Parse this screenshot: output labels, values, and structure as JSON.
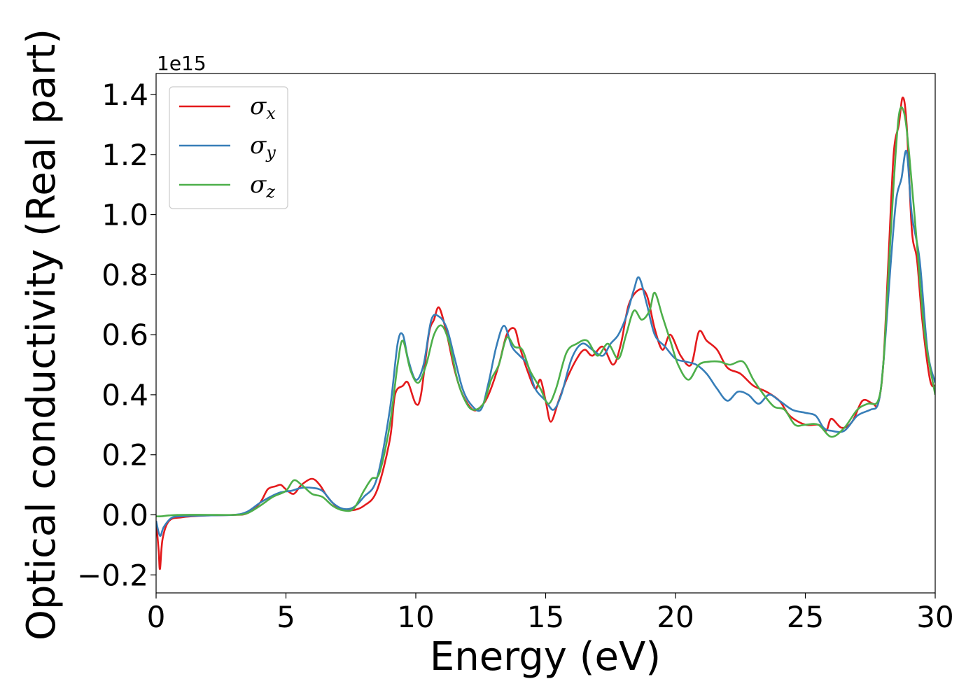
{
  "chart_data": {
    "type": "line",
    "xlabel": "Energy (eV)",
    "ylabel": "Optical conductivity (Real part)",
    "y_offset_text": "1e15",
    "xlim": [
      0,
      30
    ],
    "ylim": [
      -0.26,
      1.47
    ],
    "xticks": [
      0,
      5,
      10,
      15,
      20,
      25,
      30
    ],
    "xtick_labels": [
      "0",
      "5",
      "10",
      "15",
      "20",
      "25",
      "30"
    ],
    "yticks": [
      -0.2,
      0.0,
      0.2,
      0.4,
      0.6,
      0.8,
      1.0,
      1.2,
      1.4
    ],
    "ytick_labels": [
      "−0.2",
      "0.0",
      "0.2",
      "0.4",
      "0.6",
      "0.8",
      "1.0",
      "1.2",
      "1.4"
    ],
    "grid": false,
    "legend_position": "top-left",
    "series": [
      {
        "name": "σ",
        "subscript": "x",
        "color": "#e41a1c",
        "points": [
          [
            0,
            -0.02
          ],
          [
            0.1,
            -0.12
          ],
          [
            0.15,
            -0.18
          ],
          [
            0.25,
            -0.08
          ],
          [
            0.5,
            -0.02
          ],
          [
            1,
            -0.008
          ],
          [
            2,
            -0.002
          ],
          [
            3,
            0
          ],
          [
            3.5,
            0.005
          ],
          [
            4,
            0.04
          ],
          [
            4.3,
            0.085
          ],
          [
            4.6,
            0.095
          ],
          [
            4.8,
            0.1
          ],
          [
            5.0,
            0.085
          ],
          [
            5.3,
            0.07
          ],
          [
            5.6,
            0.1
          ],
          [
            6.0,
            0.12
          ],
          [
            6.3,
            0.1
          ],
          [
            6.6,
            0.06
          ],
          [
            7.0,
            0.025
          ],
          [
            7.5,
            0.015
          ],
          [
            8.0,
            0.03
          ],
          [
            8.5,
            0.08
          ],
          [
            9.0,
            0.25
          ],
          [
            9.2,
            0.4
          ],
          [
            9.5,
            0.43
          ],
          [
            9.7,
            0.44
          ],
          [
            10.0,
            0.37
          ],
          [
            10.2,
            0.4
          ],
          [
            10.5,
            0.6
          ],
          [
            10.7,
            0.65
          ],
          [
            10.9,
            0.69
          ],
          [
            11.2,
            0.6
          ],
          [
            11.5,
            0.48
          ],
          [
            11.8,
            0.4
          ],
          [
            12.2,
            0.35
          ],
          [
            12.5,
            0.36
          ],
          [
            12.8,
            0.4
          ],
          [
            13.2,
            0.5
          ],
          [
            13.5,
            0.6
          ],
          [
            13.8,
            0.62
          ],
          [
            14.0,
            0.56
          ],
          [
            14.3,
            0.48
          ],
          [
            14.6,
            0.42
          ],
          [
            14.8,
            0.45
          ],
          [
            15.0,
            0.38
          ],
          [
            15.2,
            0.31
          ],
          [
            15.5,
            0.38
          ],
          [
            15.8,
            0.45
          ],
          [
            16.2,
            0.52
          ],
          [
            16.5,
            0.55
          ],
          [
            16.8,
            0.53
          ],
          [
            17.2,
            0.56
          ],
          [
            17.6,
            0.5
          ],
          [
            17.9,
            0.57
          ],
          [
            18.2,
            0.7
          ],
          [
            18.6,
            0.75
          ],
          [
            18.9,
            0.73
          ],
          [
            19.2,
            0.62
          ],
          [
            19.5,
            0.55
          ],
          [
            19.8,
            0.6
          ],
          [
            20.2,
            0.53
          ],
          [
            20.6,
            0.5
          ],
          [
            20.9,
            0.61
          ],
          [
            21.2,
            0.58
          ],
          [
            21.6,
            0.55
          ],
          [
            22.0,
            0.49
          ],
          [
            22.5,
            0.47
          ],
          [
            23.0,
            0.43
          ],
          [
            23.5,
            0.41
          ],
          [
            24.0,
            0.38
          ],
          [
            24.4,
            0.33
          ],
          [
            25.0,
            0.3
          ],
          [
            25.5,
            0.3
          ],
          [
            25.8,
            0.28
          ],
          [
            26.0,
            0.32
          ],
          [
            26.4,
            0.29
          ],
          [
            26.8,
            0.31
          ],
          [
            27.2,
            0.38
          ],
          [
            27.6,
            0.37
          ],
          [
            27.8,
            0.37
          ],
          [
            28.0,
            0.5
          ],
          [
            28.2,
            0.85
          ],
          [
            28.4,
            1.2
          ],
          [
            28.6,
            1.3
          ],
          [
            28.75,
            1.39
          ],
          [
            28.9,
            1.3
          ],
          [
            29.1,
            0.95
          ],
          [
            29.3,
            0.85
          ],
          [
            29.5,
            0.65
          ],
          [
            29.8,
            0.45
          ],
          [
            30.0,
            0.43
          ]
        ]
      },
      {
        "name": "σ",
        "subscript": "y",
        "color": "#377eb8",
        "points": [
          [
            0,
            -0.02
          ],
          [
            0.15,
            -0.07
          ],
          [
            0.3,
            -0.04
          ],
          [
            0.6,
            -0.01
          ],
          [
            1,
            -0.005
          ],
          [
            2,
            -0.002
          ],
          [
            3,
            0
          ],
          [
            3.5,
            0.01
          ],
          [
            4,
            0.04
          ],
          [
            4.4,
            0.06
          ],
          [
            4.8,
            0.075
          ],
          [
            5.2,
            0.08
          ],
          [
            5.6,
            0.09
          ],
          [
            6.0,
            0.09
          ],
          [
            6.4,
            0.08
          ],
          [
            6.8,
            0.04
          ],
          [
            7.2,
            0.02
          ],
          [
            7.6,
            0.025
          ],
          [
            8.0,
            0.06
          ],
          [
            8.5,
            0.12
          ],
          [
            9.0,
            0.35
          ],
          [
            9.3,
            0.57
          ],
          [
            9.5,
            0.6
          ],
          [
            9.7,
            0.52
          ],
          [
            10.0,
            0.45
          ],
          [
            10.3,
            0.5
          ],
          [
            10.6,
            0.65
          ],
          [
            10.9,
            0.66
          ],
          [
            11.2,
            0.62
          ],
          [
            11.5,
            0.52
          ],
          [
            11.8,
            0.42
          ],
          [
            12.1,
            0.37
          ],
          [
            12.5,
            0.35
          ],
          [
            12.8,
            0.44
          ],
          [
            13.1,
            0.56
          ],
          [
            13.4,
            0.63
          ],
          [
            13.7,
            0.56
          ],
          [
            14.0,
            0.53
          ],
          [
            14.3,
            0.5
          ],
          [
            14.6,
            0.42
          ],
          [
            15.0,
            0.38
          ],
          [
            15.3,
            0.35
          ],
          [
            15.6,
            0.4
          ],
          [
            16.0,
            0.52
          ],
          [
            16.4,
            0.57
          ],
          [
            16.8,
            0.55
          ],
          [
            17.2,
            0.53
          ],
          [
            17.5,
            0.57
          ],
          [
            17.8,
            0.6
          ],
          [
            18.1,
            0.66
          ],
          [
            18.4,
            0.75
          ],
          [
            18.6,
            0.79
          ],
          [
            18.9,
            0.7
          ],
          [
            19.2,
            0.6
          ],
          [
            19.6,
            0.56
          ],
          [
            20.0,
            0.52
          ],
          [
            20.4,
            0.51
          ],
          [
            20.8,
            0.5
          ],
          [
            21.2,
            0.47
          ],
          [
            21.6,
            0.42
          ],
          [
            22.0,
            0.38
          ],
          [
            22.4,
            0.41
          ],
          [
            22.8,
            0.4
          ],
          [
            23.2,
            0.37
          ],
          [
            23.6,
            0.4
          ],
          [
            24.0,
            0.38
          ],
          [
            24.5,
            0.35
          ],
          [
            25.0,
            0.34
          ],
          [
            25.4,
            0.33
          ],
          [
            25.7,
            0.29
          ],
          [
            26.0,
            0.28
          ],
          [
            26.5,
            0.28
          ],
          [
            27.0,
            0.33
          ],
          [
            27.5,
            0.35
          ],
          [
            27.8,
            0.37
          ],
          [
            28.0,
            0.5
          ],
          [
            28.3,
            0.85
          ],
          [
            28.5,
            1.05
          ],
          [
            28.7,
            1.12
          ],
          [
            28.9,
            1.21
          ],
          [
            29.1,
            1.0
          ],
          [
            29.4,
            0.85
          ],
          [
            29.7,
            0.55
          ],
          [
            30.0,
            0.44
          ]
        ]
      },
      {
        "name": "σ",
        "subscript": "z",
        "color": "#4daf4a",
        "points": [
          [
            0,
            -0.005
          ],
          [
            0.2,
            -0.005
          ],
          [
            0.5,
            -0.002
          ],
          [
            1,
            0
          ],
          [
            2,
            0
          ],
          [
            3,
            0
          ],
          [
            3.5,
            0.005
          ],
          [
            4,
            0.03
          ],
          [
            4.5,
            0.06
          ],
          [
            5.0,
            0.08
          ],
          [
            5.3,
            0.115
          ],
          [
            5.6,
            0.1
          ],
          [
            6.0,
            0.07
          ],
          [
            6.4,
            0.06
          ],
          [
            6.8,
            0.03
          ],
          [
            7.2,
            0.015
          ],
          [
            7.6,
            0.02
          ],
          [
            8.0,
            0.08
          ],
          [
            8.3,
            0.12
          ],
          [
            8.6,
            0.14
          ],
          [
            9.0,
            0.3
          ],
          [
            9.3,
            0.5
          ],
          [
            9.5,
            0.58
          ],
          [
            9.8,
            0.48
          ],
          [
            10.1,
            0.44
          ],
          [
            10.4,
            0.5
          ],
          [
            10.7,
            0.6
          ],
          [
            11.0,
            0.63
          ],
          [
            11.3,
            0.57
          ],
          [
            11.6,
            0.45
          ],
          [
            11.9,
            0.38
          ],
          [
            12.2,
            0.35
          ],
          [
            12.6,
            0.37
          ],
          [
            12.9,
            0.45
          ],
          [
            13.2,
            0.5
          ],
          [
            13.5,
            0.59
          ],
          [
            13.8,
            0.56
          ],
          [
            14.1,
            0.55
          ],
          [
            14.4,
            0.48
          ],
          [
            14.8,
            0.42
          ],
          [
            15.1,
            0.37
          ],
          [
            15.4,
            0.42
          ],
          [
            15.8,
            0.54
          ],
          [
            16.2,
            0.57
          ],
          [
            16.6,
            0.58
          ],
          [
            17.0,
            0.53
          ],
          [
            17.4,
            0.57
          ],
          [
            17.8,
            0.52
          ],
          [
            18.1,
            0.6
          ],
          [
            18.4,
            0.68
          ],
          [
            18.7,
            0.65
          ],
          [
            19.0,
            0.68
          ],
          [
            19.2,
            0.74
          ],
          [
            19.5,
            0.66
          ],
          [
            19.8,
            0.58
          ],
          [
            20.1,
            0.5
          ],
          [
            20.5,
            0.45
          ],
          [
            20.9,
            0.5
          ],
          [
            21.3,
            0.51
          ],
          [
            21.7,
            0.51
          ],
          [
            22.1,
            0.5
          ],
          [
            22.6,
            0.51
          ],
          [
            23.0,
            0.45
          ],
          [
            23.4,
            0.4
          ],
          [
            23.8,
            0.36
          ],
          [
            24.2,
            0.35
          ],
          [
            24.6,
            0.3
          ],
          [
            25.0,
            0.3
          ],
          [
            25.5,
            0.3
          ],
          [
            26.0,
            0.26
          ],
          [
            26.5,
            0.29
          ],
          [
            27.0,
            0.35
          ],
          [
            27.4,
            0.37
          ],
          [
            27.8,
            0.38
          ],
          [
            28.0,
            0.5
          ],
          [
            28.2,
            0.8
          ],
          [
            28.4,
            1.1
          ],
          [
            28.6,
            1.33
          ],
          [
            28.8,
            1.34
          ],
          [
            29.0,
            1.2
          ],
          [
            29.3,
            0.9
          ],
          [
            29.6,
            0.6
          ],
          [
            30.0,
            0.4
          ]
        ]
      }
    ]
  }
}
